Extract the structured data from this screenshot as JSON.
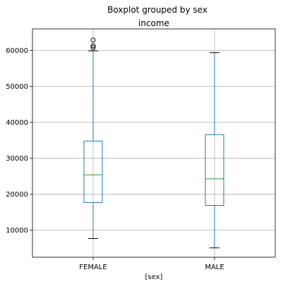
{
  "chart_data": {
    "type": "boxplot",
    "suptitle": "Boxplot grouped by sex",
    "title": "income",
    "xlabel": "[sex]",
    "ylabel": "",
    "ylim": [
      2500,
      66000
    ],
    "yticks": [
      10000,
      20000,
      30000,
      40000,
      50000,
      60000
    ],
    "ytick_labels": [
      "10000",
      "20000",
      "30000",
      "40000",
      "50000",
      "60000"
    ],
    "grid": true,
    "categories": [
      "FEMALE",
      "MALE"
    ],
    "boxes": [
      {
        "category": "FEMALE",
        "whisker_low": 7700,
        "q1": 17700,
        "median": 25400,
        "q3": 34800,
        "whisker_high": 59900,
        "fliers": [
          60800,
          61300,
          62900
        ]
      },
      {
        "category": "MALE",
        "whisker_low": 5100,
        "q1": 16900,
        "median": 24300,
        "q3": 36600,
        "whisker_high": 59400,
        "fliers": []
      }
    ],
    "colors": {
      "box": "#1f77b4",
      "median": "#2ca02c",
      "whisker": "#1f77b4",
      "cap": "#000000",
      "flier": "#000000",
      "grid": "#b0b0b0"
    }
  }
}
